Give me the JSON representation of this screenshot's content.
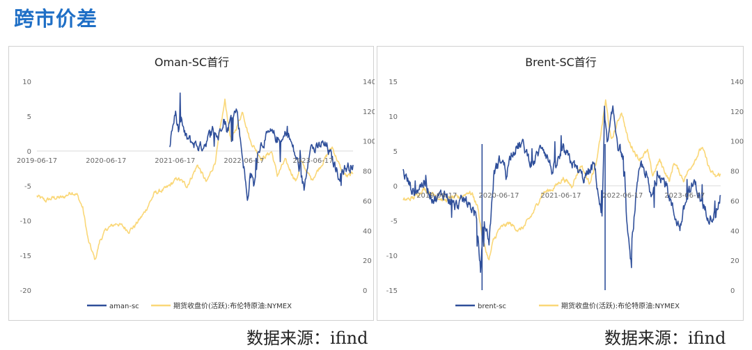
{
  "page": {
    "title": "跨市价差",
    "source_left": "数据来源：ifind",
    "source_right": "数据来源：ifind"
  },
  "colors": {
    "spread": "#2f4f9a",
    "price": "#fad777",
    "title": "#1f6fc6",
    "axis": "#d9d9d9"
  },
  "chart_data": [
    {
      "type": "line",
      "title": "Oman-SC首行",
      "x_ticks": [
        "2019-06-17",
        "2020-06-17",
        "2021-06-17",
        "2022-06-17",
        "2023-06-17"
      ],
      "y_left": {
        "ticks": [
          10,
          5,
          0,
          -5,
          -10,
          -15,
          -20
        ],
        "range": [
          -20,
          10
        ]
      },
      "y_right": {
        "ticks": [
          140,
          120,
          100,
          80,
          60,
          40,
          20,
          0
        ],
        "range": [
          0,
          140
        ]
      },
      "x_range": [
        "2019-06-17",
        "2024-01-15"
      ],
      "grid": false,
      "legend": "bottom",
      "series": [
        {
          "name": "aman-sc",
          "axis": "left",
          "color": "#2f4f9a",
          "points": [
            [
              "2021-05-20",
              1.0
            ],
            [
              "2021-06-05",
              3.5
            ],
            [
              "2021-06-20",
              5.5
            ],
            [
              "2021-07-05",
              3.0
            ],
            [
              "2021-07-20",
              4.5
            ],
            [
              "2021-08-10",
              2.0
            ],
            [
              "2021-09-01",
              1.5
            ],
            [
              "2021-10-01",
              1.0
            ],
            [
              "2021-11-01",
              0.5
            ],
            [
              "2021-12-01",
              1.5
            ],
            [
              "2022-01-01",
              3.0
            ],
            [
              "2022-02-01",
              2.0
            ],
            [
              "2022-03-01",
              5.0
            ],
            [
              "2022-03-20",
              3.0
            ],
            [
              "2022-04-15",
              5.0
            ],
            [
              "2022-05-10",
              6.0
            ],
            [
              "2022-06-01",
              1.0
            ],
            [
              "2022-06-20",
              -3.0
            ],
            [
              "2022-07-05",
              -7.5
            ],
            [
              "2022-07-20",
              -3.0
            ],
            [
              "2022-08-10",
              -5.0
            ],
            [
              "2022-09-01",
              0.5
            ],
            [
              "2022-10-01",
              1.5
            ],
            [
              "2022-11-01",
              2.5
            ],
            [
              "2022-12-01",
              2.0
            ],
            [
              "2023-01-01",
              1.0
            ],
            [
              "2023-02-01",
              3.0
            ],
            [
              "2023-03-01",
              0.5
            ],
            [
              "2023-04-01",
              -2.0
            ],
            [
              "2023-05-01",
              -5.5
            ],
            [
              "2023-06-01",
              1.0
            ],
            [
              "2023-07-01",
              0.0
            ],
            [
              "2023-08-01",
              1.0
            ],
            [
              "2023-09-01",
              0.5
            ],
            [
              "2023-10-01",
              -1.5
            ],
            [
              "2023-11-01",
              -3.5
            ],
            [
              "2023-12-01",
              -2.5
            ],
            [
              "2024-01-15",
              -2.0
            ]
          ]
        },
        {
          "name": "期货收盘价(活跃):布伦特原油:NYMEX",
          "axis": "right",
          "color": "#fad777",
          "points": [
            [
              "2019-06-17",
              63
            ],
            [
              "2019-08-01",
              60
            ],
            [
              "2019-09-15",
              62
            ],
            [
              "2019-11-01",
              62
            ],
            [
              "2019-12-20",
              66
            ],
            [
              "2020-01-15",
              64
            ],
            [
              "2020-02-15",
              55
            ],
            [
              "2020-03-15",
              33
            ],
            [
              "2020-04-20",
              20
            ],
            [
              "2020-05-15",
              33
            ],
            [
              "2020-06-20",
              41
            ],
            [
              "2020-08-15",
              45
            ],
            [
              "2020-10-15",
              40
            ],
            [
              "2020-11-15",
              43
            ],
            [
              "2021-01-01",
              51
            ],
            [
              "2021-03-01",
              65
            ],
            [
              "2021-05-01",
              68
            ],
            [
              "2021-07-01",
              75
            ],
            [
              "2021-08-20",
              70
            ],
            [
              "2021-10-15",
              84
            ],
            [
              "2021-12-01",
              72
            ],
            [
              "2022-01-15",
              86
            ],
            [
              "2022-03-08",
              127
            ],
            [
              "2022-04-10",
              100
            ],
            [
              "2022-06-10",
              120
            ],
            [
              "2022-07-20",
              100
            ],
            [
              "2022-09-20",
              88
            ],
            [
              "2022-11-10",
              93
            ],
            [
              "2022-12-10",
              77
            ],
            [
              "2023-01-20",
              87
            ],
            [
              "2023-03-20",
              73
            ],
            [
              "2023-04-15",
              86
            ],
            [
              "2023-06-10",
              74
            ],
            [
              "2023-07-20",
              82
            ],
            [
              "2023-09-27",
              96
            ],
            [
              "2023-11-15",
              80
            ],
            [
              "2023-12-15",
              76
            ],
            [
              "2024-01-15",
              78
            ]
          ]
        }
      ]
    },
    {
      "type": "line",
      "title": "Brent-SC首行",
      "x_ticks": [
        "2019-06-17",
        "2020-06-17",
        "2021-06-17",
        "2022-06-17",
        "2023-06-17"
      ],
      "y_left": {
        "ticks": [
          15,
          10,
          5,
          0,
          -5,
          -10,
          -15
        ],
        "range": [
          -15,
          15
        ]
      },
      "y_right": {
        "ticks": [
          140,
          120,
          100,
          80,
          60,
          40,
          20,
          0
        ],
        "range": [
          0,
          140
        ]
      },
      "x_range": [
        "2018-12-01",
        "2024-01-15"
      ],
      "grid": false,
      "legend": "bottom",
      "series": [
        {
          "name": "brent-sc",
          "axis": "left",
          "color": "#2f4f9a",
          "points": [
            [
              "2018-12-01",
              2.0
            ],
            [
              "2019-02-01",
              -1.0
            ],
            [
              "2019-04-01",
              0.5
            ],
            [
              "2019-06-01",
              -2.0
            ],
            [
              "2019-08-01",
              -1.0
            ],
            [
              "2019-10-01",
              -3.0
            ],
            [
              "2019-12-01",
              -2.0
            ],
            [
              "2020-02-01",
              -4.0
            ],
            [
              "2020-03-01",
              -12.0
            ],
            [
              "2020-03-20",
              -5.0
            ],
            [
              "2020-04-20",
              -8.0
            ],
            [
              "2020-05-20",
              2.0
            ],
            [
              "2020-07-01",
              4.0
            ],
            [
              "2020-08-01",
              2.0
            ],
            [
              "2020-09-01",
              5.0
            ],
            [
              "2020-11-01",
              6.0
            ],
            [
              "2021-01-01",
              3.0
            ],
            [
              "2021-03-01",
              6.0
            ],
            [
              "2021-05-01",
              2.0
            ],
            [
              "2021-07-01",
              5.0
            ],
            [
              "2021-09-01",
              3.0
            ],
            [
              "2021-11-01",
              1.0
            ],
            [
              "2022-01-01",
              3.0
            ],
            [
              "2022-02-15",
              -5.0
            ],
            [
              "2022-03-01",
              9.0
            ],
            [
              "2022-03-20",
              6.0
            ],
            [
              "2022-04-20",
              11.0
            ],
            [
              "2022-05-20",
              6.0
            ],
            [
              "2022-06-20",
              4.0
            ],
            [
              "2022-07-10",
              -5.0
            ],
            [
              "2022-08-01",
              -11.0
            ],
            [
              "2022-09-01",
              -2.0
            ],
            [
              "2022-10-01",
              3.0
            ],
            [
              "2022-11-01",
              2.0
            ],
            [
              "2022-12-01",
              -2.0
            ],
            [
              "2023-01-15",
              2.0
            ],
            [
              "2023-03-01",
              0.0
            ],
            [
              "2023-04-15",
              -4.0
            ],
            [
              "2023-05-20",
              -6.0
            ],
            [
              "2023-07-01",
              -1.5
            ],
            [
              "2023-08-15",
              0.5
            ],
            [
              "2023-10-01",
              -3.0
            ],
            [
              "2023-11-15",
              -4.5
            ],
            [
              "2023-12-15",
              -4.0
            ],
            [
              "2024-01-15",
              -1.5
            ]
          ]
        },
        {
          "name": "期货收盘价(活跃):布伦特原油:NYMEX",
          "axis": "right",
          "color": "#fad777",
          "points": [
            [
              "2018-12-01",
              60
            ],
            [
              "2019-02-01",
              62
            ],
            [
              "2019-04-01",
              68
            ],
            [
              "2019-06-17",
              63
            ],
            [
              "2019-08-01",
              60
            ],
            [
              "2019-09-15",
              62
            ],
            [
              "2019-11-01",
              62
            ],
            [
              "2019-12-20",
              66
            ],
            [
              "2020-01-15",
              64
            ],
            [
              "2020-02-15",
              55
            ],
            [
              "2020-03-15",
              33
            ],
            [
              "2020-04-20",
              20
            ],
            [
              "2020-05-15",
              33
            ],
            [
              "2020-06-20",
              41
            ],
            [
              "2020-08-15",
              45
            ],
            [
              "2020-10-15",
              40
            ],
            [
              "2020-11-15",
              43
            ],
            [
              "2021-01-01",
              51
            ],
            [
              "2021-03-01",
              65
            ],
            [
              "2021-05-01",
              68
            ],
            [
              "2021-07-01",
              75
            ],
            [
              "2021-08-20",
              70
            ],
            [
              "2021-10-15",
              84
            ],
            [
              "2021-12-01",
              72
            ],
            [
              "2022-01-15",
              86
            ],
            [
              "2022-03-08",
              127
            ],
            [
              "2022-04-10",
              100
            ],
            [
              "2022-06-10",
              120
            ],
            [
              "2022-07-20",
              100
            ],
            [
              "2022-09-20",
              88
            ],
            [
              "2022-11-10",
              93
            ],
            [
              "2022-12-10",
              77
            ],
            [
              "2023-01-20",
              87
            ],
            [
              "2023-03-20",
              73
            ],
            [
              "2023-04-15",
              86
            ],
            [
              "2023-06-10",
              74
            ],
            [
              "2023-07-20",
              82
            ],
            [
              "2023-09-27",
              96
            ],
            [
              "2023-11-15",
              80
            ],
            [
              "2023-12-15",
              76
            ],
            [
              "2024-01-15",
              78
            ]
          ]
        }
      ]
    }
  ]
}
